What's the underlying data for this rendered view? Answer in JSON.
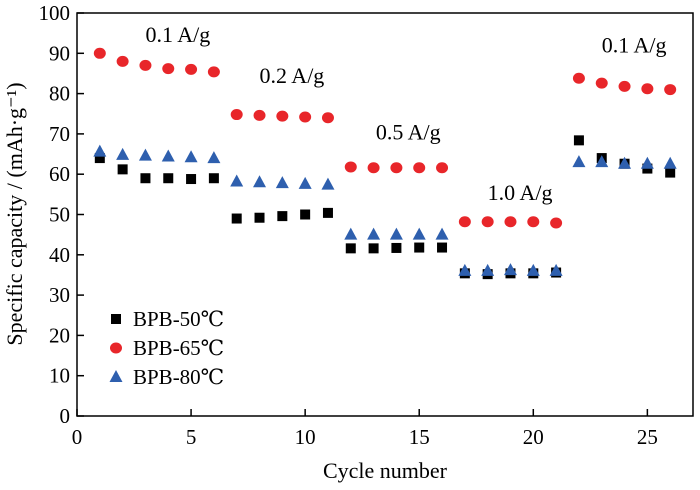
{
  "chart_data": {
    "type": "scatter",
    "title": "",
    "xlabel": "Cycle number",
    "ylabel": "Specific capacity / (mAh·g⁻¹)",
    "xlim": [
      0,
      27
    ],
    "ylim": [
      0,
      100
    ],
    "xticks": [
      0,
      5,
      10,
      15,
      20,
      25
    ],
    "yticks": [
      0,
      10,
      20,
      30,
      40,
      50,
      60,
      70,
      80,
      90,
      100
    ],
    "grid": false,
    "legend_position": "bottom-left",
    "series": [
      {
        "name": "BPB-50℃",
        "marker": "square",
        "color": "#000000",
        "x": [
          1,
          2,
          3,
          4,
          5,
          6,
          7,
          8,
          9,
          10,
          11,
          12,
          13,
          14,
          15,
          16,
          17,
          18,
          19,
          20,
          21,
          22,
          23,
          24,
          25,
          26
        ],
        "y": [
          64.0,
          61.2,
          59.0,
          59.0,
          58.8,
          59.0,
          49.0,
          49.2,
          49.6,
          50.0,
          50.4,
          41.6,
          41.6,
          41.7,
          41.8,
          41.8,
          35.4,
          35.2,
          35.4,
          35.4,
          35.6,
          68.4,
          64.0,
          62.6,
          61.4,
          60.4
        ]
      },
      {
        "name": "BPB-65℃",
        "marker": "circle",
        "color": "#e8262a",
        "x": [
          1,
          2,
          3,
          4,
          5,
          6,
          7,
          8,
          9,
          10,
          11,
          12,
          13,
          14,
          15,
          16,
          17,
          18,
          19,
          20,
          21,
          22,
          23,
          24,
          25,
          26
        ],
        "y": [
          90.0,
          88.0,
          87.0,
          86.2,
          86.0,
          85.4,
          74.8,
          74.6,
          74.4,
          74.2,
          74.0,
          61.8,
          61.6,
          61.6,
          61.6,
          61.6,
          48.2,
          48.2,
          48.2,
          48.2,
          47.9,
          83.8,
          82.6,
          81.8,
          81.2,
          81.0
        ]
      },
      {
        "name": "BPB-80℃",
        "marker": "triangle",
        "color": "#2e5fae",
        "x": [
          1,
          2,
          3,
          4,
          5,
          6,
          7,
          8,
          9,
          10,
          11,
          12,
          13,
          14,
          15,
          16,
          17,
          18,
          19,
          20,
          21,
          22,
          23,
          24,
          25,
          26
        ],
        "y": [
          65.6,
          64.8,
          64.6,
          64.4,
          64.2,
          64.0,
          58.2,
          58.0,
          57.8,
          57.6,
          57.4,
          45.0,
          45.0,
          45.0,
          45.0,
          45.0,
          36.0,
          36.0,
          36.2,
          36.0,
          36.0,
          63.0,
          63.0,
          62.6,
          62.6,
          62.6
        ]
      }
    ],
    "annotations": [
      {
        "text": "0.1 A/g",
        "x": 3.0,
        "y": 92.8
      },
      {
        "text": "0.2 A/g",
        "x": 8.0,
        "y": 82.6
      },
      {
        "text": "0.5 A/g",
        "x": 13.1,
        "y": 68.6
      },
      {
        "text": "1.0 A/g",
        "x": 18.0,
        "y": 53.6
      },
      {
        "text": "0.1 A/g",
        "x": 23.0,
        "y": 90.2
      }
    ]
  }
}
